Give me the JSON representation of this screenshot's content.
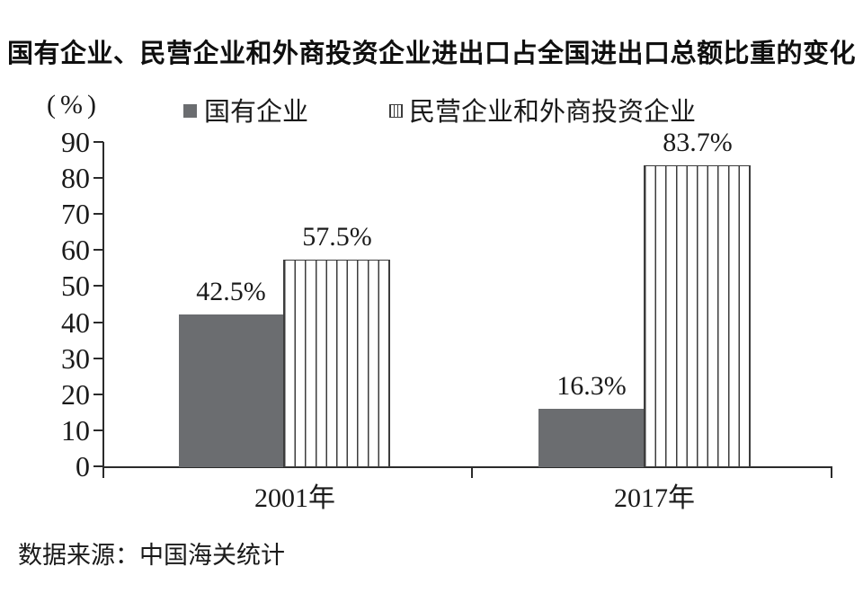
{
  "title": "国有企业、民营企业和外商投资企业进出口占全国进出口总额比重的变化",
  "y_unit_label": "(%)",
  "legend": {
    "items": [
      {
        "label": "国有企业",
        "swatch": "solid"
      },
      {
        "label": "民营企业和外商投资企业",
        "swatch": "striped"
      }
    ]
  },
  "source": "数据来源：中国海关统计",
  "colors": {
    "solid_bar": "#6b6d70",
    "stripe_line": "#3c3c3c",
    "stripe_bg": "#ffffff",
    "axis": "#2b2b2b",
    "text": "#1a1a1a"
  },
  "chart_data": {
    "type": "bar",
    "categories": [
      "2001年",
      "2017年"
    ],
    "series": [
      {
        "name": "国有企业",
        "pattern": "solid",
        "values": [
          42.5,
          16.3
        ]
      },
      {
        "name": "民营企业和外商投资企业",
        "pattern": "striped",
        "values": [
          57.5,
          83.7
        ]
      }
    ],
    "data_labels": [
      [
        "42.5%",
        "57.5%"
      ],
      [
        "16.3%",
        "83.7%"
      ]
    ],
    "title": "国有企业、民营企业和外商投资企业进出口占全国进出口总额比重的变化",
    "xlabel": "",
    "ylabel": "(%)",
    "ylim": [
      0,
      90
    ],
    "yticks": [
      0,
      10,
      20,
      30,
      40,
      50,
      60,
      70,
      80,
      90
    ],
    "grid": false,
    "legend_position": "top",
    "source": "数据来源：中国海关统计"
  }
}
